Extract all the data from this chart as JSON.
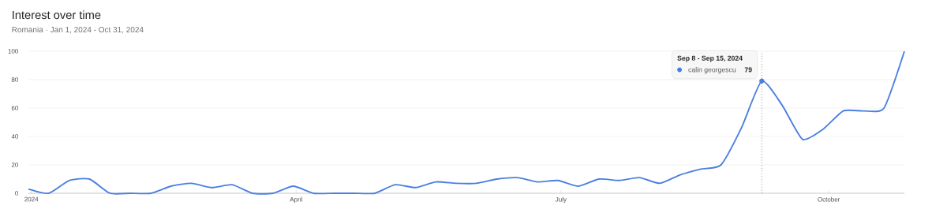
{
  "chart_data": {
    "type": "line",
    "title": "Interest over time",
    "subtitle": "Romania · Jan 1, 2024 - Oct 31, 2024",
    "x": [
      "2023-12-31",
      "2024-01-07",
      "2024-01-14",
      "2024-01-21",
      "2024-01-28",
      "2024-02-04",
      "2024-02-11",
      "2024-02-18",
      "2024-02-25",
      "2024-03-03",
      "2024-03-10",
      "2024-03-17",
      "2024-03-24",
      "2024-03-31",
      "2024-04-07",
      "2024-04-14",
      "2024-04-21",
      "2024-04-28",
      "2024-05-05",
      "2024-05-12",
      "2024-05-19",
      "2024-05-26",
      "2024-06-02",
      "2024-06-09",
      "2024-06-16",
      "2024-06-23",
      "2024-06-30",
      "2024-07-07",
      "2024-07-14",
      "2024-07-21",
      "2024-07-28",
      "2024-08-04",
      "2024-08-11",
      "2024-08-18",
      "2024-08-25",
      "2024-09-01",
      "2024-09-08",
      "2024-09-15",
      "2024-09-22",
      "2024-09-29",
      "2024-10-06",
      "2024-10-13",
      "2024-10-20",
      "2024-10-27"
    ],
    "series": [
      {
        "name": "calin georgescu",
        "color": "#4a7fe0",
        "values": [
          3,
          0,
          9,
          10,
          0,
          0,
          0,
          5,
          7,
          4,
          6,
          0,
          0,
          5,
          0,
          0,
          0,
          0,
          6,
          4,
          8,
          7,
          7,
          10,
          11,
          8,
          9,
          5,
          10,
          9,
          11,
          7,
          13,
          17,
          20,
          46,
          79,
          62,
          38,
          45,
          58,
          58,
          60,
          100
        ],
        "value_labels": [
          null,
          null,
          null,
          null,
          null,
          null,
          null,
          null,
          null,
          null,
          null,
          null,
          null,
          null,
          null,
          null,
          null,
          null,
          null,
          null,
          null,
          null,
          null,
          null,
          null,
          null,
          null,
          null,
          null,
          null,
          null,
          null,
          null,
          null,
          null,
          null,
          "79",
          null,
          null,
          null,
          null,
          null,
          null,
          null
        ]
      }
    ],
    "annotations": [
      "Sep 8 - Sep 15, 2024"
    ],
    "ref_lines": [
      {
        "axis": "x",
        "value": "2024-09-08",
        "color": "#555555",
        "line_style": "dotted"
      }
    ],
    "xlim": [
      "2023-12-31",
      "2024-10-27"
    ],
    "xticks": [
      {
        "value": "2024-01-01",
        "label": "2024"
      },
      {
        "value": "2024-04-01",
        "label": "April"
      },
      {
        "value": "2024-07-01",
        "label": "July"
      },
      {
        "value": "2024-10-01",
        "label": "October"
      }
    ],
    "ylim": [
      0,
      100
    ],
    "yticks": [
      0,
      20,
      40,
      60,
      80,
      100
    ],
    "grid": "y",
    "line_style": "solid"
  }
}
